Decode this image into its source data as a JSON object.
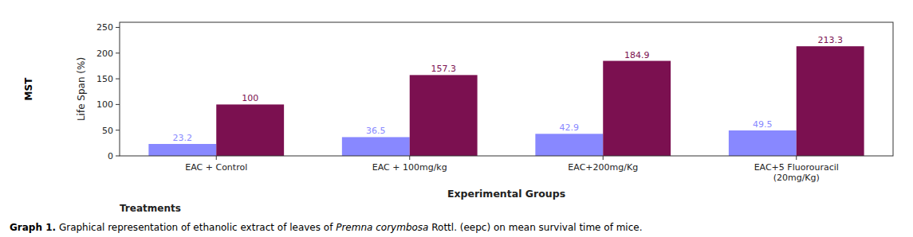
{
  "chart_data": {
    "type": "bar",
    "categories": [
      "EAC + Control",
      "EAC + 100mg/kg",
      "EAC+200mg/Kg",
      "EAC+5 Fluorouracil\n(20mg/Kg)"
    ],
    "series": [
      {
        "color": "#8888ff",
        "values": [
          23.2,
          36.5,
          42.9,
          49.5
        ]
      },
      {
        "color": "#7b1050",
        "values": [
          100,
          157.3,
          184.9,
          213.3
        ]
      }
    ],
    "ylim": [
      0,
      260
    ],
    "yticks": [
      0,
      50,
      100,
      150,
      200,
      250
    ],
    "ylabel": "Life Span (%)",
    "xlabel": "Experimental Groups",
    "annotations": [
      "Treatments",
      "MST"
    ],
    "caption": [
      "Graph 1.",
      " Graphical representation of ethanolic extract of leaves of ",
      "Premna corymbosa",
      " Rottl. (eepc) on mean survival time of mice."
    ],
    "data_labels": true,
    "grid": false
  }
}
